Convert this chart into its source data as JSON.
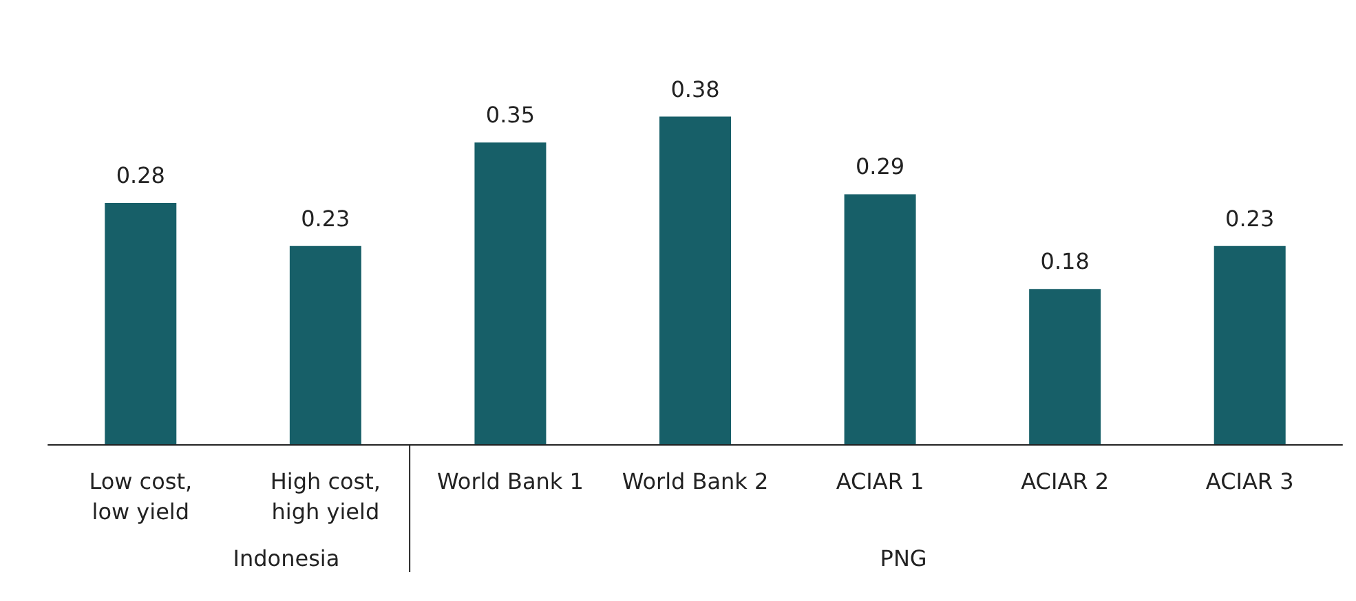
{
  "chart_data": {
    "type": "bar",
    "categories": [
      "Low cost,\nlow yield",
      "High cost,\nhigh yield",
      "World Bank 1",
      "World Bank 2",
      "ACIAR 1",
      "ACIAR 2",
      "ACIAR 3"
    ],
    "values": [
      0.28,
      0.23,
      0.35,
      0.38,
      0.29,
      0.18,
      0.23
    ],
    "color": "#175f68",
    "data_labels": true,
    "annotations": [
      "Indonesia",
      "PNG"
    ]
  }
}
